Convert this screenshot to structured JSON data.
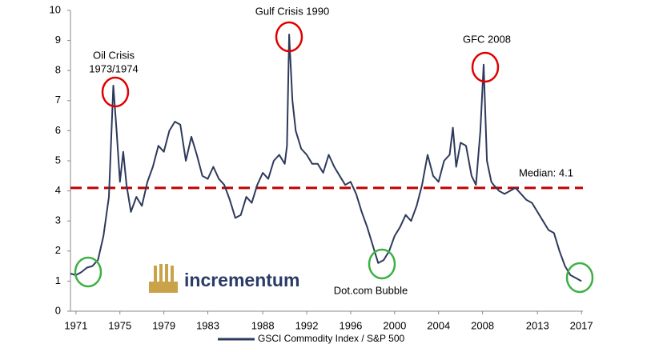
{
  "chart_data": {
    "type": "line",
    "x": [
      1970.5,
      1971,
      1971.5,
      1972,
      1972.5,
      1973,
      1973.5,
      1974,
      1974.4,
      1974.7,
      1975,
      1975.3,
      1975.6,
      1976,
      1976.5,
      1977,
      1977.5,
      1978,
      1978.5,
      1979,
      1979.5,
      1980,
      1980.5,
      1981,
      1981.5,
      1982,
      1982.5,
      1983,
      1983.5,
      1984,
      1984.5,
      1985,
      1985.5,
      1986,
      1986.5,
      1987,
      1987.5,
      1988,
      1988.5,
      1989,
      1989.5,
      1990,
      1990.2,
      1990.4,
      1990.7,
      1991,
      1991.5,
      1992,
      1992.5,
      1993,
      1993.5,
      1994,
      1994.5,
      1995,
      1995.5,
      1996,
      1996.5,
      1997,
      1997.5,
      1998,
      1998.5,
      1999,
      1999.5,
      2000,
      2000.5,
      2001,
      2001.5,
      2002,
      2002.5,
      2003,
      2003.5,
      2004,
      2004.5,
      2005,
      2005.3,
      2005.6,
      2006,
      2006.5,
      2007,
      2007.4,
      2007.8,
      2008.1,
      2008.4,
      2008.8,
      2009,
      2009.5,
      2010,
      2010.5,
      2011,
      2011.5,
      2012,
      2012.5,
      2013,
      2013.5,
      2014,
      2014.5,
      2015,
      2015.5,
      2016,
      2016.5,
      2017
    ],
    "series": [
      {
        "name": "GSCI Commodity Index / S&P 500",
        "color": "#2e3a5c",
        "values": [
          1.25,
          1.2,
          1.3,
          1.45,
          1.5,
          1.7,
          2.5,
          3.8,
          7.5,
          6.0,
          4.3,
          5.3,
          4.2,
          3.3,
          3.8,
          3.5,
          4.3,
          4.8,
          5.5,
          5.3,
          6.0,
          6.3,
          6.2,
          5.0,
          5.8,
          5.2,
          4.5,
          4.4,
          4.8,
          4.4,
          4.2,
          3.7,
          3.1,
          3.2,
          3.8,
          3.6,
          4.2,
          4.6,
          4.4,
          5.0,
          5.2,
          4.9,
          5.5,
          9.2,
          7.0,
          6.0,
          5.4,
          5.2,
          4.9,
          4.9,
          4.6,
          5.2,
          4.8,
          4.5,
          4.2,
          4.3,
          3.9,
          3.3,
          2.8,
          2.2,
          1.6,
          1.7,
          2.0,
          2.5,
          2.8,
          3.2,
          3.0,
          3.5,
          4.2,
          5.2,
          4.5,
          4.3,
          5.0,
          5.2,
          6.1,
          4.8,
          5.6,
          5.5,
          4.5,
          4.2,
          6.0,
          8.2,
          5.0,
          4.3,
          4.2,
          4.0,
          3.9,
          4.0,
          4.1,
          3.9,
          3.7,
          3.6,
          3.3,
          3.0,
          2.7,
          2.6,
          2.0,
          1.5,
          1.2,
          1.1,
          1.0
        ]
      }
    ],
    "xlim": [
      1970.5,
      2017.5
    ],
    "xticks": [
      1971,
      1975,
      1979,
      1983,
      1988,
      1992,
      1996,
      2000,
      2004,
      2008,
      2013,
      2017
    ],
    "ylim": [
      0,
      10
    ],
    "yticks": [
      0,
      1,
      2,
      3,
      4,
      5,
      6,
      7,
      8,
      9,
      10
    ],
    "median": 4.1,
    "median_label": "Median: 4.1",
    "median_color": "#c00000",
    "annotations": [
      "Oil Crisis",
      "1973/1974",
      "Gulf Crisis 1990",
      "GFC 2008",
      "Dot.com Bubble"
    ],
    "logo": "incrementum"
  }
}
